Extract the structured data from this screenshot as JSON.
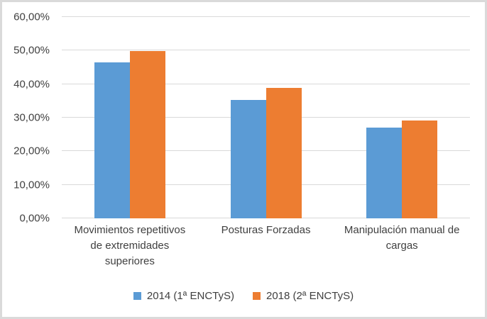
{
  "chart_data": {
    "type": "bar",
    "title": "",
    "xlabel": "",
    "ylabel": "",
    "categories": [
      "Movimientos repetitivos de extremidades superiores",
      "Posturas Forzadas",
      "Manipulación manual de cargas"
    ],
    "category_label_lines": [
      [
        "Movimientos repetitivos",
        "de extremidades",
        "superiores"
      ],
      [
        "Posturas Forzadas"
      ],
      [
        "Manipulación manual de",
        "cargas"
      ]
    ],
    "series": [
      {
        "name": "2014 (1ª ENCTyS)",
        "color": "#5B9BD5",
        "values": [
          46.5,
          35.2,
          27.0
        ]
      },
      {
        "name": "2018 (2ª ENCTyS)",
        "color": "#ED7D31",
        "values": [
          49.8,
          38.8,
          29.2
        ]
      }
    ],
    "y_ticks": [
      "60,00%",
      "50,00%",
      "40,00%",
      "30,00%",
      "20,00%",
      "10,00%",
      "0,00%"
    ],
    "ymin": 0,
    "ymax": 60,
    "grid": true,
    "legend_position": "bottom"
  },
  "colors": {
    "gridline": "#d9d9d9",
    "axis_text": "#404040",
    "background": "#ffffff",
    "frame_border": "#dadada"
  }
}
